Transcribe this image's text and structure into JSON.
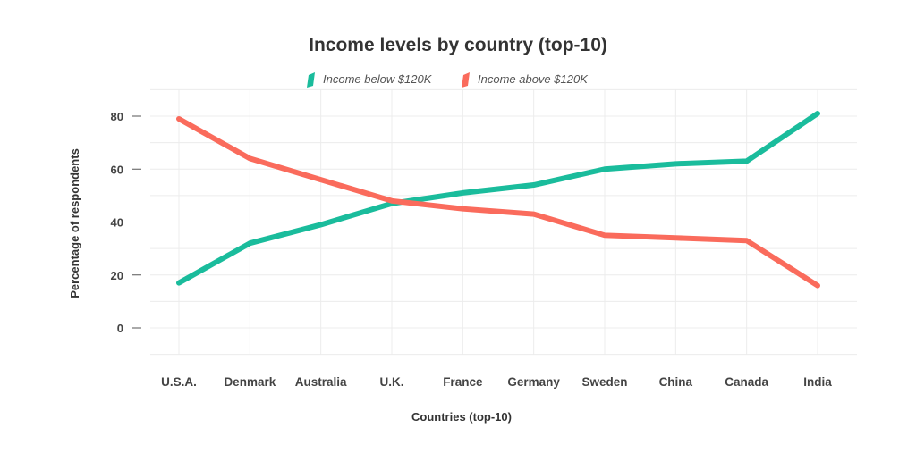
{
  "chart_data": {
    "type": "line",
    "title": "Income levels by country (top-10)",
    "xlabel": "Countries (top-10)",
    "ylabel": "Percentage of respondents",
    "categories": [
      "U.S.A.",
      "Denmark",
      "Australia",
      "U.K.",
      "France",
      "Germany",
      "Sweden",
      "China",
      "Canada",
      "India"
    ],
    "series": [
      {
        "name": "Income below $120K",
        "color": "#1abc9c",
        "values": [
          17,
          32,
          39,
          47,
          51,
          54,
          60,
          62,
          63,
          81
        ]
      },
      {
        "name": "Income above $120K",
        "color": "#fa6b5c",
        "values": [
          79,
          64,
          56,
          48,
          45,
          43,
          35,
          34,
          33,
          16
        ]
      }
    ],
    "yticks": [
      0,
      20,
      40,
      60,
      80
    ],
    "ylim": [
      -10,
      90
    ],
    "grid": true,
    "legend_position": "top-center"
  }
}
